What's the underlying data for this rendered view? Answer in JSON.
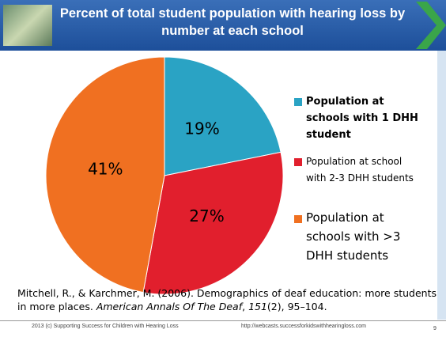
{
  "chart_data": {
    "type": "pie",
    "title": "Percent of total student population with hearing loss by number at each school",
    "categories": [
      "Population at schools with 1 DHH student",
      "Population at school with 2-3 DHH students",
      "Population at schools with >3 DHH students"
    ],
    "values": [
      19,
      27,
      41
    ],
    "value_labels": [
      "19%",
      "27%",
      "41%"
    ],
    "colors": [
      "#2aa3c4",
      "#e11f2d",
      "#f07021"
    ]
  },
  "citation": [
    "Mitchell, R., & Karchmer, M. (2006). Demographics of deaf education: more students in more places. ",
    "American Annals Of The Deaf",
    ", ",
    "151",
    "(2), 95–104."
  ],
  "footer": {
    "left": "2013 (c) Supporting Success for Children with Hearing Loss",
    "url": "http://webcasts.successforkidswithhearingloss.com",
    "page": "9"
  }
}
